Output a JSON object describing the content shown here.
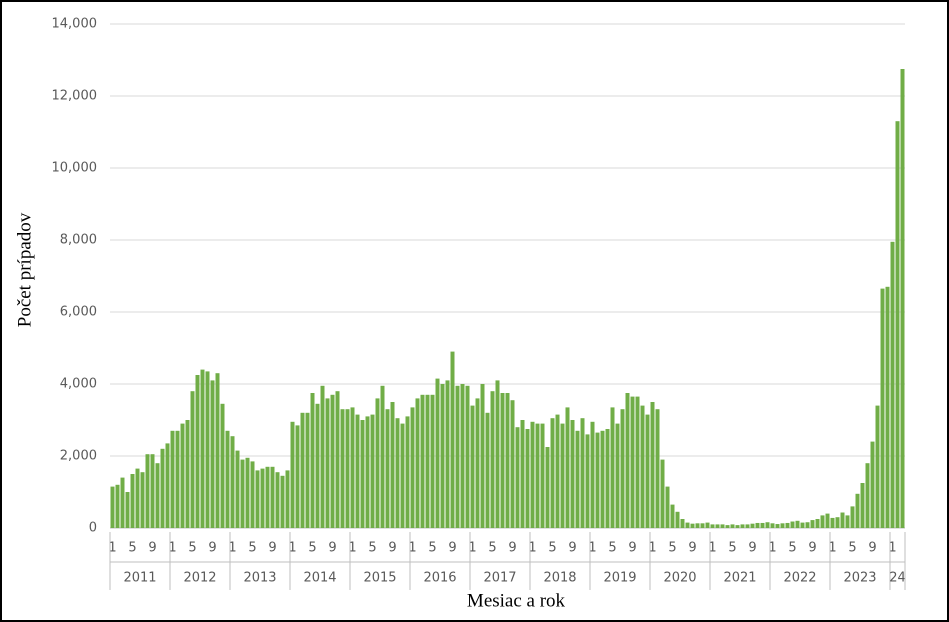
{
  "chart_data": {
    "type": "bar",
    "y_label": "Počet prípadov",
    "x_label": "Mesiac a rok",
    "color": "#70ad47",
    "grid": true,
    "ylim": [
      0,
      14000
    ],
    "yticks": [
      0,
      {
        "value": 2000,
        "label": "2,000"
      },
      {
        "value": 4000,
        "label": "4,000"
      },
      {
        "value": 6000,
        "label": "6,000"
      },
      {
        "value": 8000,
        "label": "8,000"
      },
      {
        "value": 10000,
        "label": "10,000"
      },
      {
        "value": 12000,
        "label": "12,000"
      },
      {
        "value": 14000,
        "label": "14,000"
      }
    ],
    "year_groups": [
      "2011",
      "2012",
      "2013",
      "2014",
      "2015",
      "2016",
      "2017",
      "2018",
      "2019",
      "2020",
      "2021",
      "2022",
      "2023",
      "24"
    ],
    "categories": [
      "1",
      null,
      null,
      null,
      "5",
      null,
      null,
      null,
      "9",
      null,
      null,
      null,
      "1",
      null,
      null,
      null,
      "5",
      null,
      null,
      null,
      "9",
      null,
      null,
      null,
      "1",
      null,
      null,
      null,
      "5",
      null,
      null,
      null,
      "9",
      null,
      null,
      null,
      "1",
      null,
      null,
      null,
      "5",
      null,
      null,
      null,
      "9",
      null,
      null,
      null,
      "1",
      null,
      null,
      null,
      "5",
      null,
      null,
      null,
      "9",
      null,
      null,
      null,
      "1",
      null,
      null,
      null,
      "5",
      null,
      null,
      null,
      "9",
      null,
      null,
      null,
      "1",
      null,
      null,
      null,
      "5",
      null,
      null,
      null,
      "9",
      null,
      null,
      null,
      "1",
      null,
      null,
      null,
      "5",
      null,
      null,
      null,
      "9",
      null,
      null,
      null,
      "1",
      null,
      null,
      null,
      "5",
      null,
      null,
      null,
      "9",
      null,
      null,
      null,
      "1",
      null,
      null,
      null,
      "5",
      null,
      null,
      null,
      "9",
      null,
      null,
      null,
      "1",
      null,
      null,
      null,
      "5",
      null,
      null,
      null,
      "9",
      null,
      null,
      null,
      "1",
      null,
      null,
      null,
      "5",
      null,
      null,
      null,
      "9",
      null,
      null,
      null,
      "1",
      null,
      null,
      null,
      "5",
      null,
      null,
      null,
      "9",
      null,
      null,
      null,
      "1",
      null,
      null
    ],
    "values": [
      1150,
      1200,
      1400,
      1000,
      1500,
      1650,
      1550,
      2050,
      2050,
      1800,
      2200,
      2350,
      2700,
      2700,
      2900,
      3000,
      3800,
      4250,
      4400,
      4350,
      4100,
      4300,
      3450,
      2700,
      2550,
      2150,
      1900,
      1950,
      1850,
      1600,
      1650,
      1700,
      1700,
      1550,
      1450,
      1600,
      2950,
      2850,
      3200,
      3200,
      3750,
      3450,
      3950,
      3600,
      3700,
      3800,
      3300,
      3300,
      3350,
      3150,
      3000,
      3100,
      3150,
      3600,
      3950,
      3300,
      3500,
      3050,
      2900,
      3100,
      3350,
      3600,
      3700,
      3700,
      3700,
      4150,
      4000,
      4100,
      4900,
      3950,
      4000,
      3950,
      3400,
      3600,
      4000,
      3200,
      3800,
      4100,
      3750,
      3750,
      3550,
      2800,
      3000,
      2750,
      2950,
      2900,
      2900,
      2250,
      3050,
      3150,
      2900,
      3350,
      3000,
      2700,
      3050,
      2600,
      2950,
      2650,
      2700,
      2750,
      3350,
      2900,
      3300,
      3750,
      3650,
      3650,
      3400,
      3150,
      3500,
      3300,
      1900,
      1150,
      650,
      450,
      250,
      150,
      120,
      130,
      130,
      150,
      100,
      100,
      100,
      80,
      100,
      80,
      100,
      100,
      120,
      140,
      140,
      160,
      130,
      110,
      130,
      140,
      180,
      200,
      150,
      160,
      220,
      250,
      350,
      400,
      280,
      300,
      430,
      350,
      600,
      950,
      1250,
      1800,
      2400,
      3400,
      6650,
      6700,
      7950,
      11300,
      12750
    ]
  }
}
